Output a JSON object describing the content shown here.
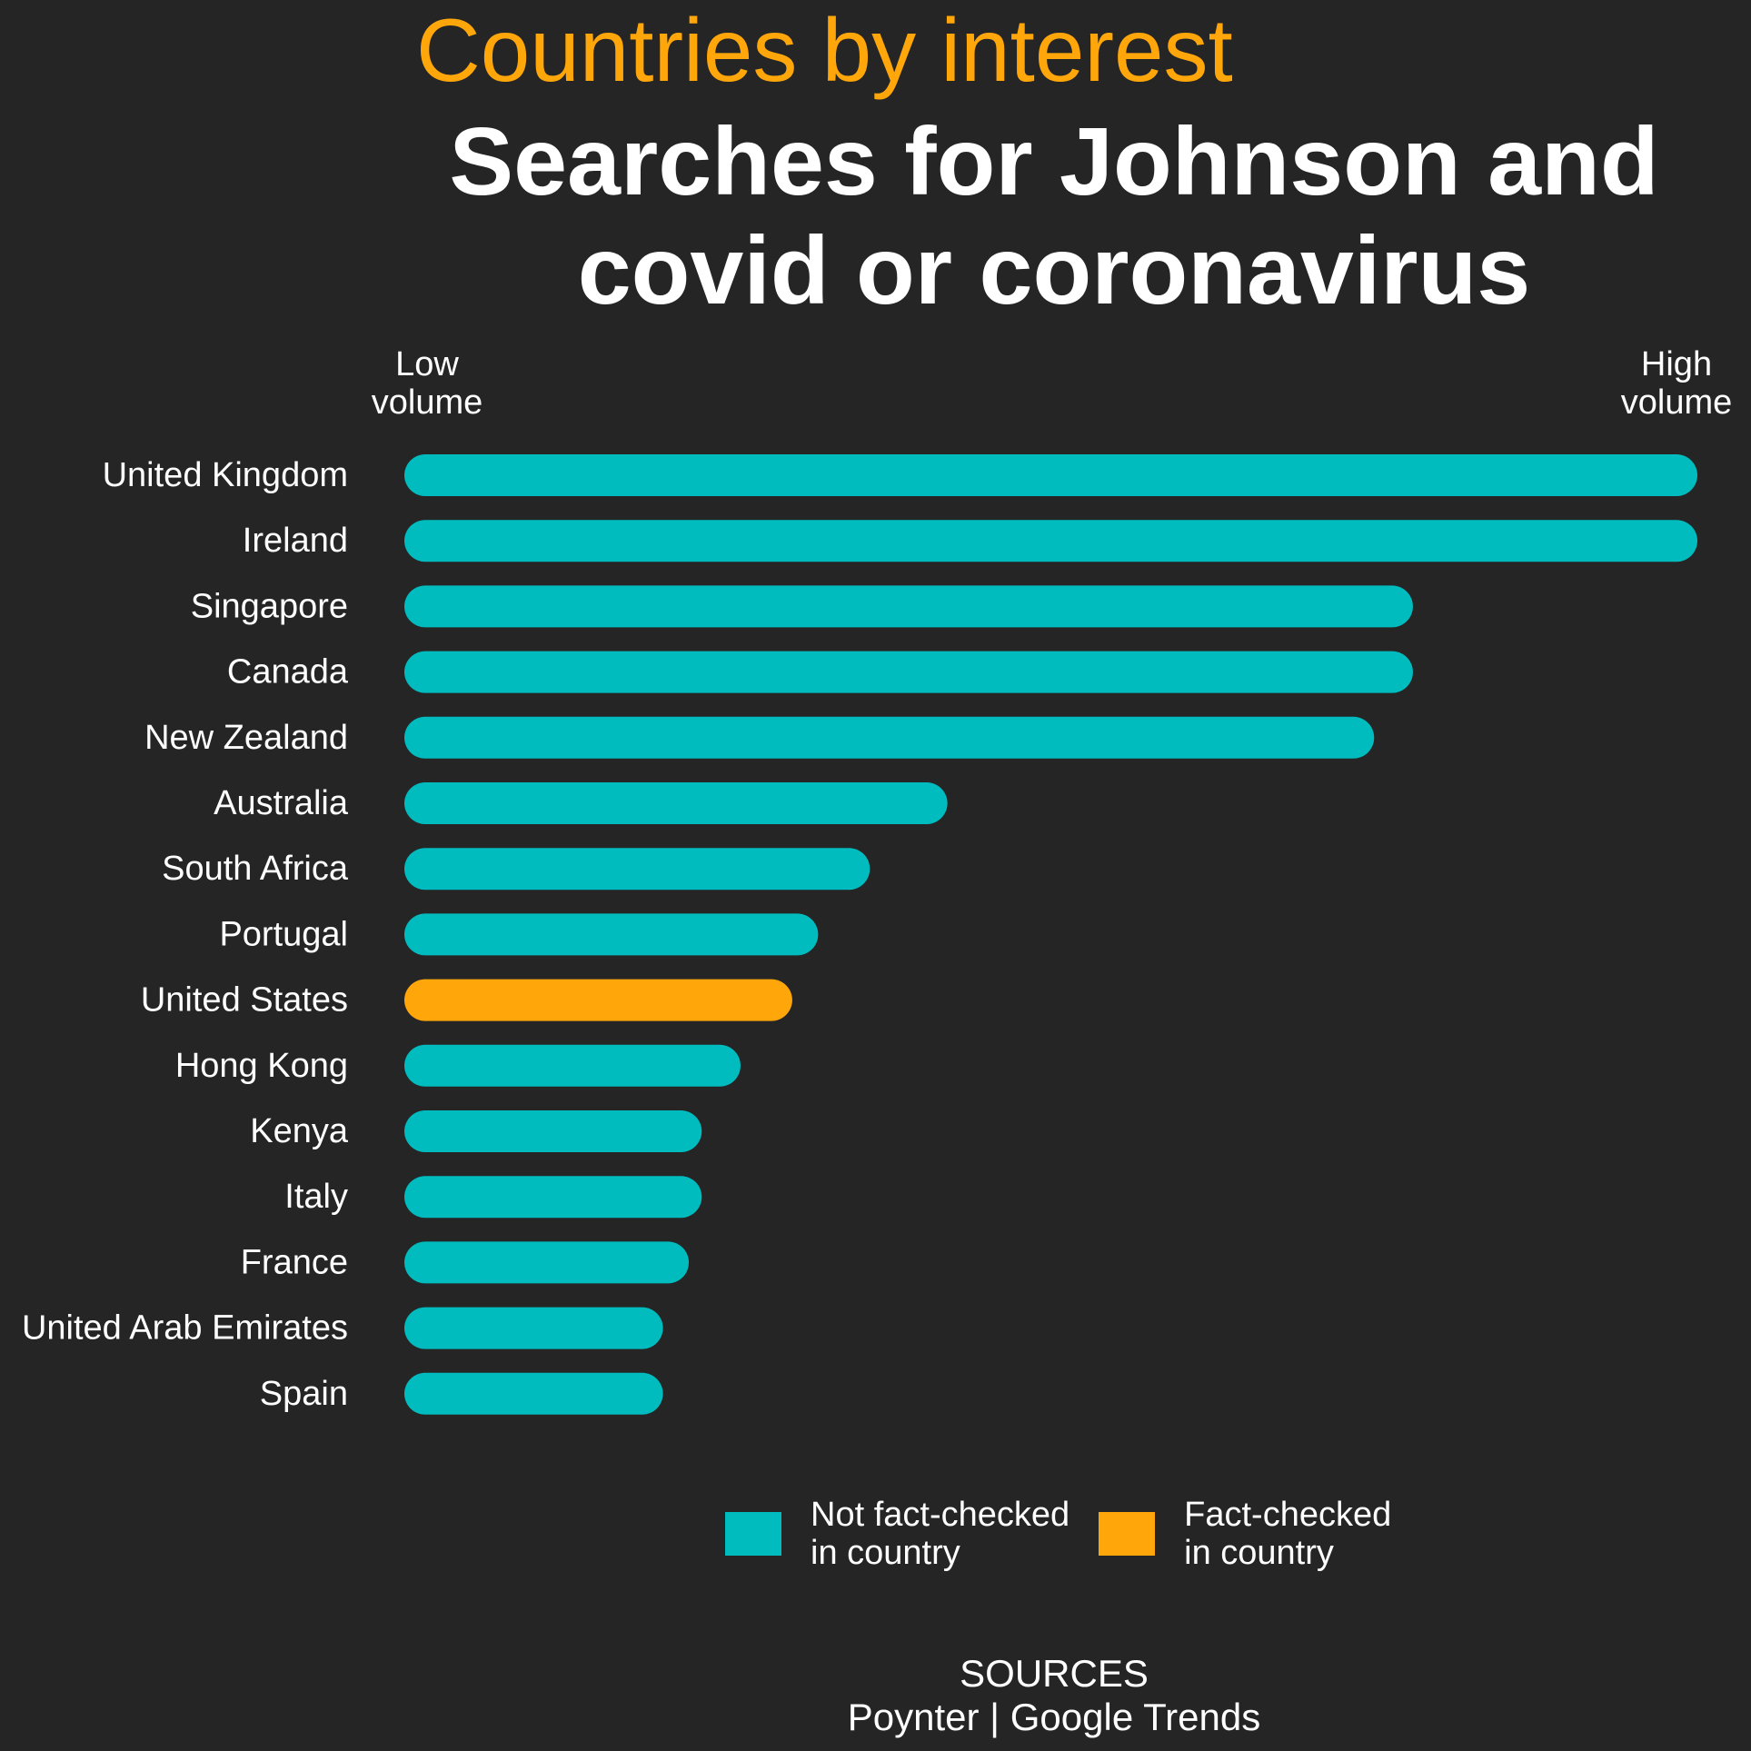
{
  "header": {
    "kicker": "Countries by interest",
    "title_line1": "Searches for Johnson and",
    "title_line2": "covid or coronavirus"
  },
  "axis": {
    "low_label": "Low\nvolume",
    "high_label": "High\nvolume"
  },
  "chart_data": {
    "type": "bar",
    "orientation": "horizontal",
    "value_scale": "relative interest (0 = low volume, 100 = high volume)",
    "xlim": [
      0,
      100
    ],
    "categories": [
      "United Kingdom",
      "Ireland",
      "Singapore",
      "Canada",
      "New Zealand",
      "Australia",
      "South Africa",
      "Portugal",
      "United States",
      "Hong Kong",
      "Kenya",
      "Italy",
      "France",
      "United Arab Emirates",
      "Spain"
    ],
    "values": [
      100,
      100,
      78,
      78,
      75,
      42,
      36,
      32,
      30,
      26,
      23,
      23,
      22,
      20,
      20
    ],
    "groups": [
      "not",
      "not",
      "not",
      "not",
      "not",
      "not",
      "not",
      "not",
      "fact",
      "not",
      "not",
      "not",
      "not",
      "not",
      "not"
    ],
    "colors": {
      "not": "#00bcbf",
      "fact": "#ffa70a"
    }
  },
  "legend": {
    "items": [
      {
        "key": "not",
        "label": "Not fact-checked\nin country",
        "color": "#00bcbf"
      },
      {
        "key": "fact",
        "label": "Fact-checked\nin country",
        "color": "#ffa70a"
      }
    ]
  },
  "sources": {
    "heading": "SOURCES",
    "text": "Poynter | Google Trends"
  }
}
